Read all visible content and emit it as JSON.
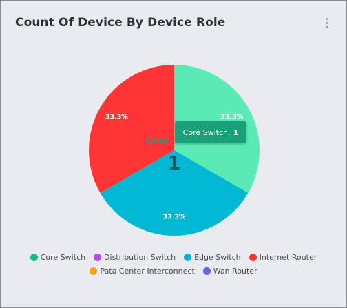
{
  "card": {
    "title": "Count Of Device By Device Role",
    "menu_icon": "kebab-vertical-icon"
  },
  "chart_data": {
    "type": "pie",
    "title": "Count Of Device By Device Role",
    "slices": [
      {
        "label": "Core Switch",
        "value": 1,
        "percent_label": "33.3%",
        "color": "#5aeab6"
      },
      {
        "label": "Edge Switch",
        "value": 1,
        "percent_label": "33.3%",
        "color": "#00b8d4"
      },
      {
        "label": "Internet Router",
        "value": 1,
        "percent_label": "33.3%",
        "color": "#ff3535"
      }
    ],
    "center_label": "Core",
    "center_value": "1",
    "tooltip": {
      "label": "Core Switch:",
      "value": "1"
    },
    "legend": [
      {
        "label": "Core Switch",
        "color": "#1dbb84"
      },
      {
        "label": "Distribution Switch",
        "color": "#b44fef"
      },
      {
        "label": "Edge Switch",
        "color": "#00b8d4"
      },
      {
        "label": "Internet Router",
        "color": "#ff3535"
      },
      {
        "label": "Pata Center Interconnect",
        "color": "#ff9f14"
      },
      {
        "label": "Wan Router",
        "color": "#6a62ee"
      }
    ],
    "legend_position": "bottom"
  }
}
